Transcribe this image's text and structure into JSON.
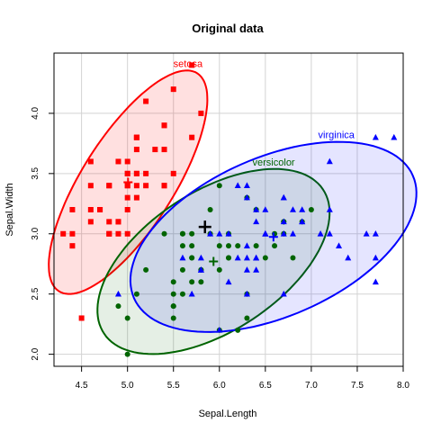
{
  "chart_data": {
    "type": "scatter",
    "title": "Original data",
    "xlabel": "Sepal.Length",
    "ylabel": "Sepal.Width",
    "xlim": [
      4.2,
      8.0
    ],
    "ylim": [
      1.9,
      4.5
    ],
    "xticks": [
      4.5,
      5.0,
      5.5,
      6.0,
      6.5,
      7.0,
      7.5,
      8.0
    ],
    "xtick_labels": [
      "4.5",
      "5.0",
      "5.5",
      "6.0",
      "6.5",
      "7.0",
      "7.5",
      "8.0"
    ],
    "yticks": [
      2.0,
      2.5,
      3.0,
      3.5,
      4.0
    ],
    "ytick_labels": [
      "2.0",
      "2.5",
      "3.0",
      "3.5",
      "4.0"
    ],
    "grid": true,
    "series": [
      {
        "name": "setosa",
        "marker": "square",
        "color": "#ff0000",
        "points": [
          [
            5.1,
            3.5
          ],
          [
            4.9,
            3.0
          ],
          [
            4.7,
            3.2
          ],
          [
            4.6,
            3.1
          ],
          [
            5.0,
            3.6
          ],
          [
            5.4,
            3.9
          ],
          [
            4.6,
            3.4
          ],
          [
            5.0,
            3.4
          ],
          [
            4.4,
            2.9
          ],
          [
            4.9,
            3.1
          ],
          [
            5.4,
            3.7
          ],
          [
            4.8,
            3.4
          ],
          [
            4.8,
            3.0
          ],
          [
            4.3,
            3.0
          ],
          [
            5.8,
            4.0
          ],
          [
            5.7,
            4.4
          ],
          [
            5.4,
            3.9
          ],
          [
            5.1,
            3.5
          ],
          [
            5.7,
            3.8
          ],
          [
            5.1,
            3.8
          ],
          [
            5.4,
            3.4
          ],
          [
            5.1,
            3.7
          ],
          [
            4.6,
            3.6
          ],
          [
            5.1,
            3.3
          ],
          [
            4.8,
            3.4
          ],
          [
            5.0,
            3.0
          ],
          [
            5.0,
            3.4
          ],
          [
            5.2,
            3.5
          ],
          [
            5.2,
            3.4
          ],
          [
            4.7,
            3.2
          ],
          [
            4.8,
            3.1
          ],
          [
            5.4,
            3.4
          ],
          [
            5.2,
            4.1
          ],
          [
            5.5,
            4.2
          ],
          [
            4.9,
            3.1
          ],
          [
            5.0,
            3.2
          ],
          [
            5.5,
            3.5
          ],
          [
            4.9,
            3.6
          ],
          [
            4.4,
            3.0
          ],
          [
            5.1,
            3.4
          ],
          [
            5.0,
            3.5
          ],
          [
            4.5,
            2.3
          ],
          [
            4.4,
            3.2
          ],
          [
            5.0,
            3.5
          ],
          [
            5.1,
            3.8
          ],
          [
            4.8,
            3.0
          ],
          [
            5.1,
            3.8
          ],
          [
            4.6,
            3.2
          ],
          [
            5.3,
            3.7
          ],
          [
            5.0,
            3.3
          ]
        ],
        "center": [
          5.006,
          3.428
        ],
        "ellipse_color": "#ff0000",
        "ellipse_fill": "rgba(255,0,0,0.12)"
      },
      {
        "name": "versicolor",
        "marker": "circle",
        "color": "#006400",
        "points": [
          [
            7.0,
            3.2
          ],
          [
            6.4,
            3.2
          ],
          [
            6.9,
            3.1
          ],
          [
            5.5,
            2.3
          ],
          [
            6.5,
            2.8
          ],
          [
            5.7,
            2.8
          ],
          [
            6.3,
            3.3
          ],
          [
            4.9,
            2.4
          ],
          [
            6.6,
            2.9
          ],
          [
            5.2,
            2.7
          ],
          [
            5.0,
            2.0
          ],
          [
            5.9,
            3.0
          ],
          [
            6.0,
            2.2
          ],
          [
            6.1,
            2.9
          ],
          [
            5.6,
            2.9
          ],
          [
            6.7,
            3.1
          ],
          [
            5.6,
            3.0
          ],
          [
            5.8,
            2.7
          ],
          [
            6.2,
            2.2
          ],
          [
            5.6,
            2.5
          ],
          [
            5.9,
            3.2
          ],
          [
            6.1,
            2.8
          ],
          [
            6.3,
            2.5
          ],
          [
            6.1,
            2.8
          ],
          [
            6.4,
            2.9
          ],
          [
            6.6,
            3.0
          ],
          [
            6.8,
            2.8
          ],
          [
            6.7,
            3.0
          ],
          [
            6.0,
            2.9
          ],
          [
            5.7,
            2.6
          ],
          [
            5.5,
            2.4
          ],
          [
            5.5,
            2.4
          ],
          [
            5.8,
            2.7
          ],
          [
            6.0,
            2.7
          ],
          [
            5.4,
            3.0
          ],
          [
            6.0,
            3.4
          ],
          [
            6.7,
            3.1
          ],
          [
            6.3,
            2.3
          ],
          [
            5.6,
            3.0
          ],
          [
            5.5,
            2.5
          ],
          [
            5.5,
            2.6
          ],
          [
            6.1,
            3.0
          ],
          [
            5.8,
            2.6
          ],
          [
            5.0,
            2.3
          ],
          [
            5.6,
            2.7
          ],
          [
            5.7,
            3.0
          ],
          [
            5.7,
            2.9
          ],
          [
            6.2,
            2.9
          ],
          [
            5.1,
            2.5
          ],
          [
            5.7,
            2.8
          ]
        ],
        "center": [
          5.936,
          2.77
        ],
        "ellipse_color": "#006400",
        "ellipse_fill": "rgba(0,100,0,0.10)"
      },
      {
        "name": "virginica",
        "marker": "triangle",
        "color": "#0000ff",
        "points": [
          [
            6.3,
            3.3
          ],
          [
            5.8,
            2.7
          ],
          [
            7.1,
            3.0
          ],
          [
            6.3,
            2.9
          ],
          [
            6.5,
            3.0
          ],
          [
            7.6,
            3.0
          ],
          [
            4.9,
            2.5
          ],
          [
            7.3,
            2.9
          ],
          [
            6.7,
            2.5
          ],
          [
            7.2,
            3.6
          ],
          [
            6.5,
            3.2
          ],
          [
            6.4,
            2.7
          ],
          [
            6.8,
            3.0
          ],
          [
            5.7,
            2.5
          ],
          [
            5.8,
            2.8
          ],
          [
            6.4,
            3.2
          ],
          [
            6.5,
            3.0
          ],
          [
            7.7,
            3.8
          ],
          [
            7.7,
            2.6
          ],
          [
            6.0,
            2.2
          ],
          [
            6.9,
            3.2
          ],
          [
            5.6,
            2.8
          ],
          [
            7.7,
            2.8
          ],
          [
            6.3,
            2.7
          ],
          [
            6.7,
            3.3
          ],
          [
            7.2,
            3.2
          ],
          [
            6.2,
            2.8
          ],
          [
            6.1,
            3.0
          ],
          [
            6.4,
            2.8
          ],
          [
            7.2,
            3.0
          ],
          [
            7.4,
            2.8
          ],
          [
            7.9,
            3.8
          ],
          [
            6.4,
            2.8
          ],
          [
            6.3,
            2.8
          ],
          [
            6.1,
            2.6
          ],
          [
            7.7,
            3.0
          ],
          [
            6.3,
            3.4
          ],
          [
            6.4,
            3.1
          ],
          [
            6.0,
            3.0
          ],
          [
            6.9,
            3.1
          ],
          [
            6.7,
            3.1
          ],
          [
            6.9,
            3.1
          ],
          [
            5.8,
            2.7
          ],
          [
            6.8,
            3.2
          ],
          [
            6.7,
            3.3
          ],
          [
            6.7,
            3.0
          ],
          [
            6.3,
            2.5
          ],
          [
            6.5,
            3.0
          ],
          [
            6.2,
            3.4
          ],
          [
            5.9,
            3.0
          ]
        ],
        "center": [
          6.588,
          2.974
        ],
        "ellipse_color": "#0000ff",
        "ellipse_fill": "rgba(0,0,255,0.10)"
      }
    ],
    "overall_center": [
      5.843,
      3.057
    ]
  }
}
